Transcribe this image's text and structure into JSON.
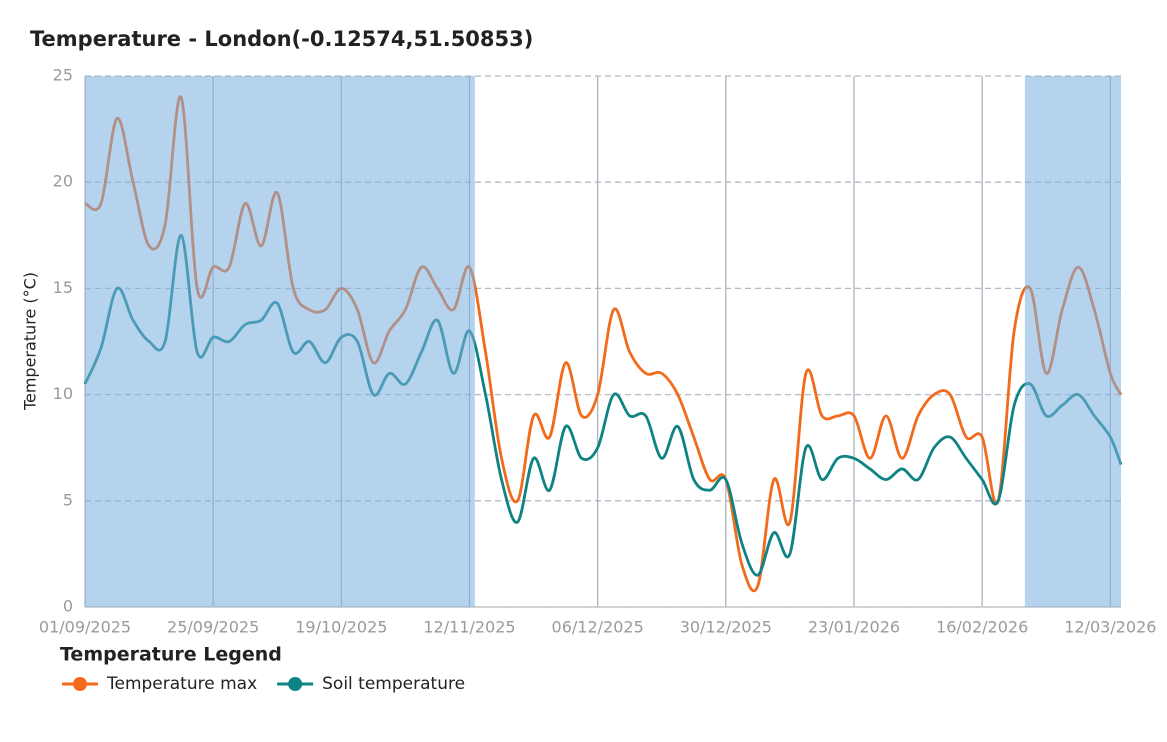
{
  "chart_data": {
    "type": "line",
    "title": "Temperature - London(-0.12574,51.50853)",
    "y_label": "Temperature (°C)",
    "legend_title": "Temperature Legend",
    "x": [
      "01/09/2025",
      "04/09/2025",
      "07/09/2025",
      "10/09/2025",
      "13/09/2025",
      "16/09/2025",
      "19/09/2025",
      "22/09/2025",
      "25/09/2025",
      "28/09/2025",
      "01/10/2025",
      "04/10/2025",
      "07/10/2025",
      "10/10/2025",
      "13/10/2025",
      "16/10/2025",
      "19/10/2025",
      "22/10/2025",
      "25/10/2025",
      "28/10/2025",
      "31/10/2025",
      "03/11/2025",
      "06/11/2025",
      "09/11/2025",
      "12/11/2025",
      "15/11/2025",
      "18/11/2025",
      "21/11/2025",
      "24/11/2025",
      "27/11/2025",
      "30/11/2025",
      "03/12/2025",
      "06/12/2025",
      "09/12/2025",
      "12/12/2025",
      "15/12/2025",
      "18/12/2025",
      "21/12/2025",
      "24/12/2025",
      "27/12/2025",
      "30/12/2025",
      "02/01/2026",
      "05/01/2026",
      "08/01/2026",
      "11/01/2026",
      "14/01/2026",
      "17/01/2026",
      "20/01/2026",
      "23/01/2026",
      "26/01/2026",
      "29/01/2026",
      "01/02/2026",
      "04/02/2026",
      "07/02/2026",
      "10/02/2026",
      "13/02/2026",
      "16/02/2026",
      "19/02/2026",
      "22/02/2026",
      "25/02/2026",
      "28/02/2026",
      "03/03/2026",
      "06/03/2026",
      "09/03/2026",
      "12/03/2026",
      "14/03/2026"
    ],
    "series": [
      {
        "name": "Temperature max",
        "color": "#f26a1b",
        "values": [
          19,
          19,
          23,
          20,
          17,
          18,
          24,
          15,
          16,
          16,
          19,
          17,
          19.5,
          15,
          14,
          14,
          15,
          14,
          11.5,
          13,
          14,
          16,
          15,
          14,
          16,
          12,
          7,
          5,
          9,
          8,
          11.5,
          9,
          10,
          14,
          12,
          11,
          11,
          10,
          8,
          6,
          6,
          2,
          1,
          6,
          4,
          11,
          9,
          9,
          9,
          7,
          9,
          7,
          9,
          10,
          10,
          8,
          8,
          5,
          13,
          15,
          11,
          14,
          16,
          14,
          11,
          10
        ]
      },
      {
        "name": "Soil temperature",
        "color": "#0f8383",
        "values": [
          10.5,
          12.2,
          15,
          13.5,
          12.5,
          12.5,
          17.5,
          12,
          12.7,
          12.5,
          13.3,
          13.5,
          14.3,
          12,
          12.5,
          11.5,
          12.7,
          12.5,
          10,
          11,
          10.5,
          12,
          13.5,
          11,
          13,
          10,
          6,
          4,
          7,
          5.5,
          8.5,
          7,
          7.5,
          10,
          9,
          9,
          7,
          8.5,
          6,
          5.5,
          6,
          3,
          1.5,
          3.5,
          2.5,
          7.5,
          6,
          7,
          7,
          6.5,
          6,
          6.5,
          6,
          7.5,
          8,
          7,
          6,
          5,
          9.5,
          10.5,
          9,
          9.5,
          10,
          9,
          8,
          6.7
        ]
      }
    ],
    "xlim": [
      "01/09/2025",
      "14/03/2026"
    ],
    "xticks": [
      "01/09/2025",
      "25/09/2025",
      "19/10/2025",
      "12/11/2025",
      "06/12/2025",
      "30/12/2025",
      "23/01/2026",
      "16/02/2026",
      "12/03/2026"
    ],
    "ylim": [
      0,
      25
    ],
    "yticks": [
      0,
      5,
      10,
      15,
      20,
      25
    ],
    "grid": true,
    "bands": [
      [
        "01/09/2025",
        "13/11/2025"
      ],
      [
        "24/02/2026",
        "14/03/2026"
      ]
    ],
    "band_color": "#7aaee0"
  }
}
